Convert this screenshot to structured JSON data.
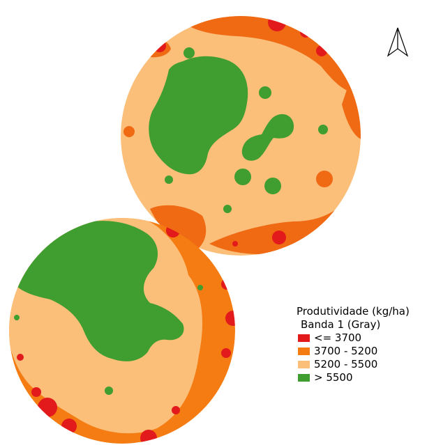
{
  "legend": {
    "title": "Produtividade (kg/ha)",
    "subtitle": "Banda 1 (Gray)",
    "items": [
      {
        "label": "<= 3700",
        "color": "#e31a1c"
      },
      {
        "label": "3700 - 5200",
        "color": "#f57c12"
      },
      {
        "label": "5200 - 5500",
        "color": "#fbbf7a"
      },
      {
        "label": "> 5500",
        "color": "#3f9e2f"
      }
    ]
  },
  "map": {
    "north_arrow_icon": "north-arrow-icon",
    "fields": [
      "upper-right-pivot-field",
      "lower-left-pivot-field"
    ],
    "colors": {
      "lowest": "#e31a1c",
      "low": "#f57c12",
      "mid": "#fbbf7a",
      "high": "#3f9e2f",
      "upper_field_edge": "#f06a14"
    }
  }
}
